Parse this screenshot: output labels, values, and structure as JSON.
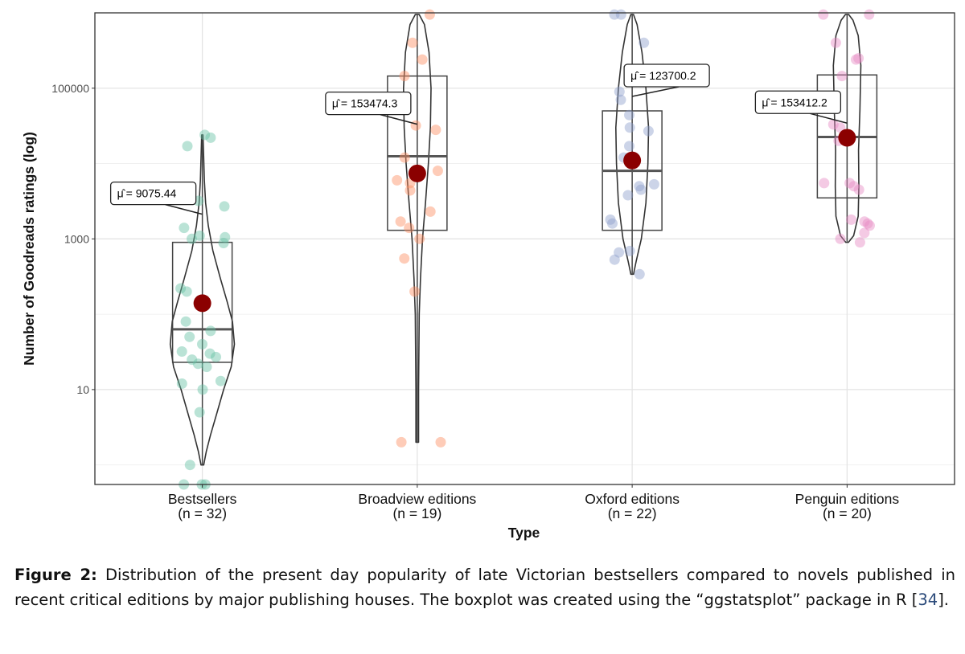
{
  "chart_data": {
    "type": "violin-box",
    "xlabel": "Type",
    "ylabel": "Number of Goodreads ratings (log)",
    "y_scale": "log10",
    "ylim": [
      0.55,
      1000000
    ],
    "y_ticks": [
      {
        "value": 10,
        "label": "10"
      },
      {
        "value": 1000,
        "label": "1000"
      },
      {
        "value": 100000,
        "label": "100000"
      }
    ],
    "grid": true,
    "groups": [
      {
        "name": "Bestsellers",
        "n_label": "(n = 32)",
        "color": "#66c2a5",
        "mean_label": "9075.44",
        "mean_point": 140,
        "box": {
          "q1": 23,
          "median": 63,
          "q3": 900
        },
        "whisker": [
          1,
          24000
        ],
        "violin_range": [
          1,
          24000
        ],
        "violin_widths": [
          [
            1,
            0.004
          ],
          [
            1.5,
            0.012
          ],
          [
            2.5,
            0.025
          ],
          [
            5,
            0.045
          ],
          [
            10,
            0.065
          ],
          [
            20,
            0.088
          ],
          [
            40,
            0.098
          ],
          [
            80,
            0.092
          ],
          [
            150,
            0.075
          ],
          [
            300,
            0.055
          ],
          [
            700,
            0.032
          ],
          [
            1500,
            0.018
          ],
          [
            3000,
            0.01
          ],
          [
            6000,
            0.006
          ],
          [
            12000,
            0.004
          ],
          [
            24000,
            0.002
          ]
        ],
        "points": [
          0.5,
          0.5,
          0.5,
          1,
          5,
          10,
          12,
          13,
          20,
          22,
          25,
          27,
          30,
          32,
          40,
          50,
          60,
          80,
          130,
          150,
          200,
          220,
          880,
          1050,
          1400,
          1100,
          2700,
          17000,
          3200,
          24000,
          22000,
          1000
        ]
      },
      {
        "name": "Broadview editions",
        "n_label": "(n = 19)",
        "color": "#fc8d62",
        "mean_label": "153474.3",
        "mean_point": 7400,
        "box": {
          "q1": 1300,
          "median": 12500,
          "q3": 145000
        },
        "whisker": [
          2,
          950000
        ],
        "violin_range": [
          2,
          950000
        ],
        "violin_widths": [
          [
            2,
            0.004
          ],
          [
            10,
            0.004
          ],
          [
            100,
            0.006
          ],
          [
            300,
            0.01
          ],
          [
            1000,
            0.016
          ],
          [
            3000,
            0.025
          ],
          [
            10000,
            0.034
          ],
          [
            30000,
            0.04
          ],
          [
            100000,
            0.042
          ],
          [
            300000,
            0.036
          ],
          [
            700000,
            0.022
          ],
          [
            950000,
            0.006
          ]
        ],
        "points": [
          2,
          2,
          200,
          550,
          1000,
          1400,
          1700,
          2300,
          4400,
          5500,
          6000,
          8000,
          12000,
          28000,
          32000,
          145000,
          240000,
          400000,
          950000
        ]
      },
      {
        "name": "Oxford editions",
        "n_label": "(n = 22)",
        "color": "#8da0cb",
        "mean_label": "123700.2",
        "mean_point": 11000,
        "box": {
          "q1": 1300,
          "median": 8000,
          "q3": 50000
        },
        "whisker": [
          340,
          950000
        ],
        "violin_range": [
          340,
          950000
        ],
        "violin_widths": [
          [
            340,
            0.004
          ],
          [
            500,
            0.012
          ],
          [
            1000,
            0.028
          ],
          [
            3000,
            0.042
          ],
          [
            10000,
            0.048
          ],
          [
            30000,
            0.05
          ],
          [
            100000,
            0.042
          ],
          [
            300000,
            0.03
          ],
          [
            700000,
            0.015
          ],
          [
            950000,
            0.004
          ]
        ],
        "points": [
          340,
          530,
          660,
          690,
          1600,
          1800,
          3800,
          4500,
          5000,
          5300,
          12000,
          12000,
          12000,
          17000,
          27000,
          30000,
          44000,
          70000,
          90000,
          400000,
          950000,
          950000
        ]
      },
      {
        "name": "Penguin editions",
        "n_label": "(n = 20)",
        "color": "#e78ac3",
        "mean_label": "153412.2",
        "mean_point": 22000,
        "box": {
          "q1": 3500,
          "median": 22500,
          "q3": 150000
        },
        "whisker": [
          900,
          950000
        ],
        "violin_range": [
          900,
          950000
        ],
        "violin_widths": [
          [
            900,
            0.004
          ],
          [
            1100,
            0.02
          ],
          [
            2000,
            0.034
          ],
          [
            5000,
            0.036
          ],
          [
            15000,
            0.035
          ],
          [
            50000,
            0.039
          ],
          [
            200000,
            0.042
          ],
          [
            500000,
            0.034
          ],
          [
            800000,
            0.018
          ],
          [
            950000,
            0.005
          ]
        ],
        "points": [
          900,
          1200,
          1500,
          1600,
          1700,
          4500,
          5000,
          5500,
          5500,
          20000,
          30000,
          33000,
          145000,
          240000,
          250000,
          400000,
          950000,
          950000,
          1000,
          1800
        ]
      }
    ]
  },
  "caption": {
    "label": "Figure 2:",
    "text_before_ref": "Distribution of the present day popularity of late Victorian bestsellers compared to novels published in recent critical editions by major publishing houses.  The boxplot was created using the “ggstatsplot” package in R [",
    "ref": "34",
    "text_after_ref": "]."
  }
}
